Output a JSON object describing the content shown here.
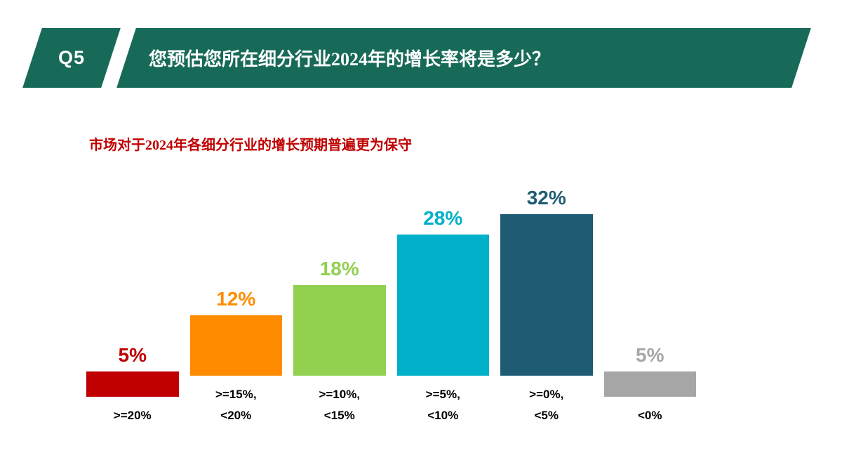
{
  "header": {
    "tag": "Q5",
    "title": "您预估您所在细分行业2024年的增长率将是多少？",
    "banner_color": "#186a58",
    "text_color": "#ffffff"
  },
  "subtitle": {
    "text": "市场对于2024年各细分行业的增长预期普遍更为保守",
    "color": "#c00000"
  },
  "chart_data": {
    "type": "bar",
    "categories": [
      ">=20%",
      ">=15%,\n<20%",
      ">=10%,\n<15%",
      ">=5%,\n<10%",
      ">=0%,\n<5%",
      "<0%"
    ],
    "values": [
      5,
      12,
      18,
      28,
      32,
      5
    ],
    "value_labels": [
      "5%",
      "12%",
      "18%",
      "28%",
      "32%",
      "5%"
    ],
    "bar_colors": [
      "#c00000",
      "#ff8c00",
      "#92d050",
      "#00b0c8",
      "#1f5c73",
      "#a6a6a6"
    ],
    "ylim": [
      0,
      32
    ],
    "grid": false,
    "legend": false,
    "title": "",
    "xlabel": "",
    "ylabel": ""
  }
}
